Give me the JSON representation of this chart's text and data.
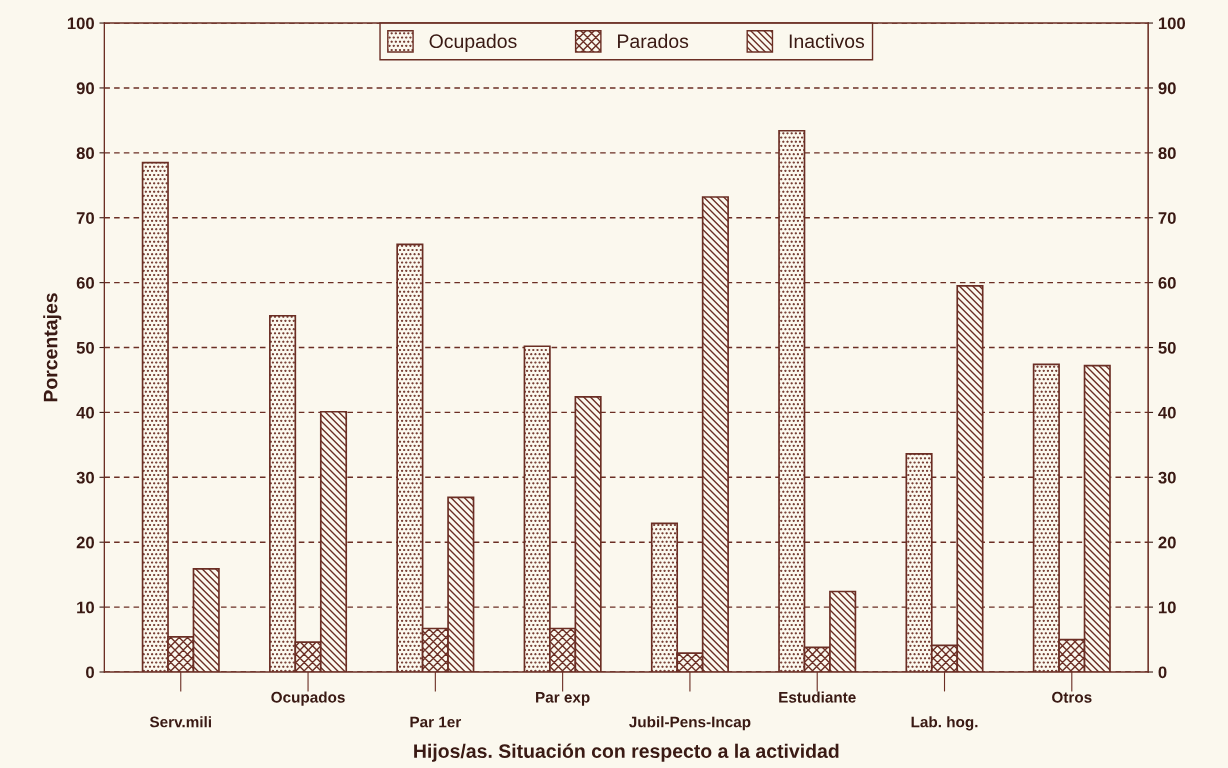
{
  "chart_data": {
    "type": "bar",
    "xlabel": "Hijos/as. Situación con respecto a la actividad",
    "ylabel": "Porcentajes",
    "categories": [
      "Serv.mili",
      "Ocupados",
      "Par 1er",
      "Par exp",
      "Jubil-Pens-Incap",
      "Estudiante",
      "Lab. hog.",
      "Otros"
    ],
    "series": [
      {
        "name": "Ocupados",
        "color": "#6b2e24",
        "values": [
          78.5,
          54.9,
          65.9,
          50.2,
          22.9,
          83.4,
          33.6,
          47.4
        ]
      },
      {
        "name": "Parados",
        "color": "#6b2e24",
        "values": [
          5.4,
          4.6,
          6.7,
          6.7,
          2.9,
          3.8,
          4.1,
          5.0
        ]
      },
      {
        "name": "Inactivos",
        "color": "#6b2e24",
        "values": [
          15.9,
          40.1,
          26.9,
          42.4,
          73.2,
          12.4,
          59.5,
          47.2
        ]
      }
    ],
    "ylim": [
      0,
      100
    ],
    "yticks": [
      0,
      10,
      20,
      30,
      40,
      50,
      60,
      70,
      80,
      90,
      100
    ],
    "y2lim": [
      0,
      100
    ],
    "y2ticks": [
      0,
      10,
      20,
      30,
      40,
      50,
      60,
      70,
      80,
      90,
      100
    ],
    "grid": "y",
    "legend": "top"
  }
}
